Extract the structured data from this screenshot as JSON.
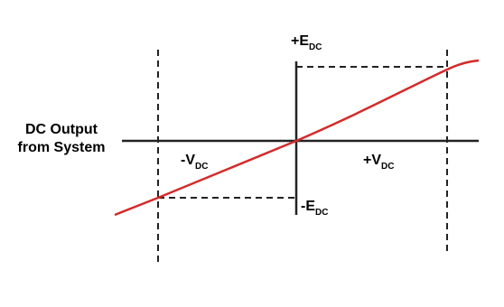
{
  "axis_label": {
    "line1": "DC Output",
    "line2": "from System"
  },
  "labels": {
    "plus_e": {
      "main": "+E",
      "sub": "DC"
    },
    "minus_e": {
      "main": "-E",
      "sub": "DC"
    },
    "minus_v": {
      "main": "-V",
      "sub": "DC"
    },
    "plus_v": {
      "main": "+V",
      "sub": "DC"
    }
  }
}
